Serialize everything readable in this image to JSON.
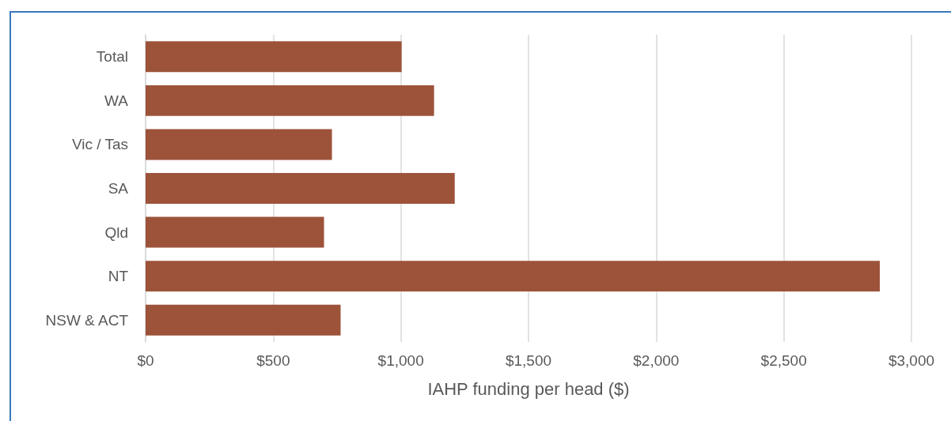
{
  "chart_data": {
    "type": "bar",
    "orientation": "horizontal",
    "xlabel": "IAHP funding per head ($)",
    "categories": [
      "Total",
      "WA",
      "Vic / Tas",
      "SA",
      "Qld",
      "NT",
      "NSW & ACT"
    ],
    "values": [
      1003,
      1130,
      730,
      1211,
      699,
      2876,
      764
    ],
    "color": "#9c533a",
    "xlim": [
      0,
      3000
    ],
    "xticks": [
      {
        "value": 0,
        "label": "$0"
      },
      {
        "value": 500,
        "label": "$500"
      },
      {
        "value": 1000,
        "label": "$1,000"
      },
      {
        "value": 1500,
        "label": "$1,500"
      },
      {
        "value": 2000,
        "label": "$2,000"
      },
      {
        "value": 2500,
        "label": "$2,500"
      },
      {
        "value": 3000,
        "label": "$3,000"
      }
    ],
    "grid": "x"
  }
}
